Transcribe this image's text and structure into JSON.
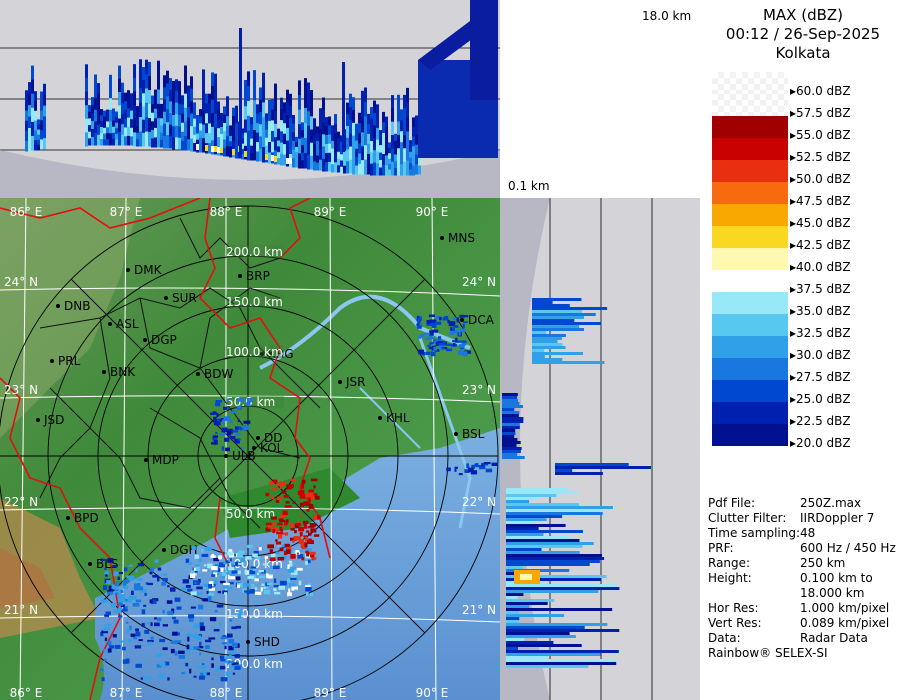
{
  "header": {
    "product": "MAX (dBZ)",
    "datetime": "00:12 / 26-Sep-2025",
    "station": "Kolkata"
  },
  "height_labels": {
    "top": "18.0 km",
    "bottom": "0.1 km"
  },
  "legend": [
    {
      "label": "60.0 dBZ",
      "color": "checker"
    },
    {
      "label": "57.5 dBZ",
      "color": "checker"
    },
    {
      "label": "55.0 dBZ",
      "color": "#a00000"
    },
    {
      "label": "52.5 dBZ",
      "color": "#c80000"
    },
    {
      "label": "50.0 dBZ",
      "color": "#e83010"
    },
    {
      "label": "47.5 dBZ",
      "color": "#f86a10"
    },
    {
      "label": "45.0 dBZ",
      "color": "#f8a800"
    },
    {
      "label": "42.5 dBZ",
      "color": "#f8d820"
    },
    {
      "label": "40.0 dBZ",
      "color": "#fff8b0"
    },
    {
      "label": "37.5 dBZ",
      "color": "#ffffff"
    },
    {
      "label": "35.0 dBZ",
      "color": "#98e8f8"
    },
    {
      "label": "32.5 dBZ",
      "color": "#58c8f0"
    },
    {
      "label": "30.0 dBZ",
      "color": "#30a0e8"
    },
    {
      "label": "27.5 dBZ",
      "color": "#1878e0"
    },
    {
      "label": "25.0 dBZ",
      "color": "#0048d0"
    },
    {
      "label": "22.5 dBZ",
      "color": "#0020b0"
    },
    {
      "label": "20.0 dBZ",
      "color": "#001090"
    }
  ],
  "meta": [
    {
      "key": "Pdf File:",
      "value": "250Z.max"
    },
    {
      "key": "Clutter Filter:",
      "value": "IIRDoppler 7"
    },
    {
      "key": "Time sampling:",
      "value": "48"
    },
    {
      "key": "PRF:",
      "value": "600 Hz / 450 Hz"
    },
    {
      "key": "Range:",
      "value": "250 km"
    },
    {
      "key": "Height:",
      "value": "0.100 km to"
    },
    {
      "key": "",
      "value": "18.000 km"
    },
    {
      "key": "Hor Res:",
      "value": "1.000 km/pixel"
    },
    {
      "key": "Vert Res:",
      "value": "0.089 km/pixel"
    },
    {
      "key": "Data:",
      "value": "Radar Data"
    }
  ],
  "footer": "Rainbow® SELEX-SI",
  "map": {
    "longitudes": [
      "86° E",
      "87° E",
      "88° E",
      "89° E",
      "90° E"
    ],
    "latitudes": [
      "24° N",
      "23° N",
      "22° N",
      "21° N"
    ],
    "range_rings": [
      "50.0 km",
      "100.0 km",
      "150.0 km",
      "200.0 km"
    ],
    "stations": [
      "DMK",
      "BRP",
      "MNS",
      "DNB",
      "SUR",
      "ASL",
      "DGP",
      "DCA",
      "PRL",
      "BNK",
      "BDW",
      "KRG",
      "JSR",
      "JSD",
      "DD",
      "KOL",
      "KHL",
      "BSL",
      "MDP",
      "ULB",
      "BPD",
      "DGH",
      "BLS",
      "SHD"
    ]
  }
}
